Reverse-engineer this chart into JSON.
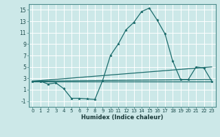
{
  "xlabel": "Humidex (Indice chaleur)",
  "bg_color": "#cce8e8",
  "grid_color": "#ffffff",
  "line_color": "#1a6b6b",
  "xlim": [
    -0.5,
    23.5
  ],
  "ylim": [
    -2,
    16
  ],
  "xticks": [
    0,
    1,
    2,
    3,
    4,
    5,
    6,
    7,
    8,
    9,
    10,
    11,
    12,
    13,
    14,
    15,
    16,
    17,
    18,
    19,
    20,
    21,
    22,
    23
  ],
  "yticks": [
    -1,
    1,
    3,
    5,
    7,
    9,
    11,
    13,
    15
  ],
  "line1_x": [
    0,
    1,
    2,
    3,
    4,
    5,
    6,
    7,
    8,
    9,
    10,
    11,
    12,
    13,
    14,
    15,
    16,
    17,
    18,
    19,
    20,
    21,
    22,
    23
  ],
  "line1_y": [
    2.5,
    2.5,
    2.0,
    2.2,
    1.2,
    -0.5,
    -0.5,
    -0.6,
    -0.7,
    2.6,
    7.0,
    9.0,
    11.5,
    12.8,
    14.7,
    15.3,
    13.2,
    10.8,
    6.0,
    2.8,
    2.8,
    5.0,
    4.8,
    2.5
  ],
  "line2_x": [
    0,
    23
  ],
  "line2_y": [
    2.5,
    2.5
  ],
  "line3_x": [
    0,
    23
  ],
  "line3_y": [
    2.5,
    5.0
  ],
  "line4_x": [
    0,
    23
  ],
  "line4_y": [
    2.5,
    2.8
  ]
}
